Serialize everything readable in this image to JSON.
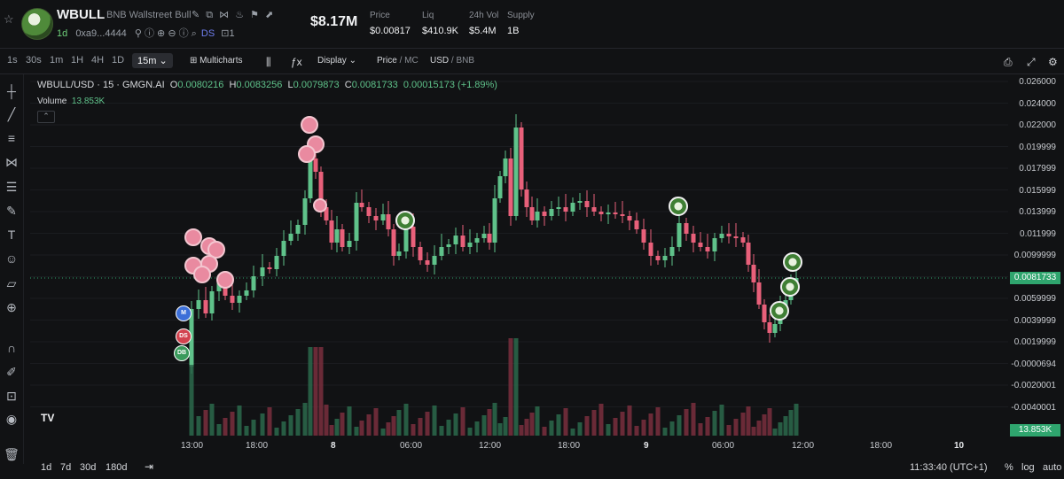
{
  "header": {
    "symbol": "WBULL",
    "full_name": "BNB Wallstreet Bull",
    "age": "1d",
    "address": "0xa9...4444",
    "tag_ds": "DS",
    "holders_count": "1",
    "market_cap": "$8.17M",
    "stats": [
      {
        "label": "Price",
        "value": "$0.00817"
      },
      {
        "label": "Liq",
        "value": "$410.9K"
      },
      {
        "label": "24h Vol",
        "value": "$5.4M"
      },
      {
        "label": "Supply",
        "value": "1B"
      }
    ]
  },
  "toolbar": {
    "timeframes": [
      "1s",
      "30s",
      "1m",
      "1H",
      "4H",
      "1D"
    ],
    "active_timeframe": "15m",
    "multicharts": "Multicharts",
    "display": "Display",
    "price_label": "Price",
    "mc_label": "MC",
    "usd_label": "USD",
    "bnb_label": "BNB"
  },
  "legend": {
    "title": "WBULL/USD · 15 · GMGN.AI",
    "o_label": "O",
    "o": "0.0080216",
    "h_label": "H",
    "h": "0.0083256",
    "l_label": "L",
    "l": "0.0079873",
    "c_label": "C",
    "c": "0.0081733",
    "change": "0.00015173 (+1.89%)",
    "volume_label": "Volume",
    "volume": "13.853K"
  },
  "chart_data": {
    "type": "candlestick",
    "y_ticks": [
      "0.026000",
      "0.024000",
      "0.022000",
      "0.019999",
      "0.017999",
      "0.015999",
      "0.013999",
      "0.011999",
      "0.0099999",
      "0.0079999",
      "0.0059999",
      "0.0039999",
      "0.0019999",
      "-0.0000694",
      "-0.0020001",
      "-0.0040001"
    ],
    "x_ticks": [
      "13:00",
      "18:00",
      "8",
      "06:00",
      "12:00",
      "18:00",
      "9",
      "06:00",
      "12:00",
      "18:00",
      "10"
    ],
    "last_price": "0.0081733",
    "last_volume": "13.853K",
    "markers": [
      "M",
      "DS",
      "DB"
    ],
    "ylim": [
      -0.0045,
      0.027
    ]
  },
  "bottom": {
    "ranges": [
      "1d",
      "7d",
      "30d",
      "180d"
    ],
    "time": "11:33:40 (UTC+1)",
    "pct": "%",
    "log": "log",
    "auto": "auto"
  },
  "colors": {
    "up": "#5fc28a",
    "down": "#e8607a",
    "bg": "#111214",
    "grid": "#1e2024"
  }
}
